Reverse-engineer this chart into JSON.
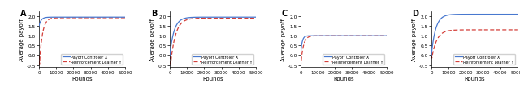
{
  "panels": [
    "A",
    "B",
    "C",
    "D"
  ],
  "xlim": [
    0,
    50000
  ],
  "xtick_vals": [
    0,
    10000,
    20000,
    30000,
    40000,
    50000
  ],
  "xtick_labels": [
    "0",
    "10000",
    "20000",
    "30000",
    "40000",
    "50000"
  ],
  "xlabel": "Rounds",
  "ylabel": "Average payoff",
  "ytick_vals": [
    -0.5,
    0.0,
    0.5,
    1.0,
    1.5,
    2.0
  ],
  "ytick_labels": [
    "-0.5",
    "0.0",
    "0.5",
    "1.0",
    "1.5",
    "2.0"
  ],
  "ylim": [
    -0.6,
    2.25
  ],
  "legend_labels": [
    "Payoff Controler X",
    "Reinforcement Learner Y"
  ],
  "line_color_x": "#4878cf",
  "line_color_y": "#d43f3a",
  "figsize": [
    6.4,
    1.15
  ],
  "dpi": 100,
  "curves": {
    "A": {
      "x_init": 1.5,
      "x_final": 1.95,
      "x_speed": 0.0008,
      "y_dip": -0.45,
      "y_final": 1.92,
      "y_dip_end": 300,
      "y_speed": 0.0006
    },
    "B": {
      "x_init": 0.0,
      "x_final": 1.95,
      "x_speed": 0.0004,
      "y_dip": -0.45,
      "y_final": 1.9,
      "y_dip_end": 500,
      "y_speed": 0.00035
    },
    "C": {
      "x_init": 0.0,
      "x_final": 1.0,
      "x_speed": 0.0012,
      "y_dip": -0.45,
      "y_final": 1.0,
      "y_dip_end": 200,
      "y_speed": 0.0007
    },
    "D": {
      "x_init": 0.0,
      "x_final": 2.1,
      "x_speed": 0.0004,
      "y_dip": -0.15,
      "y_final": 1.3,
      "y_dip_end": 300,
      "y_speed": 0.00035
    }
  }
}
